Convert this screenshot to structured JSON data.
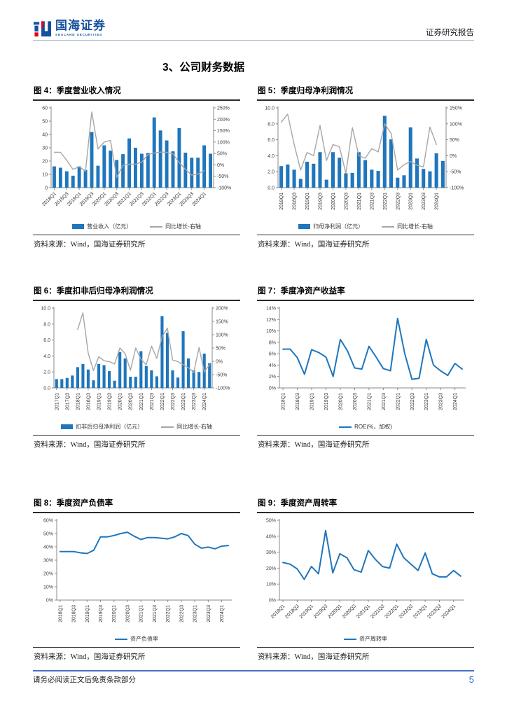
{
  "header": {
    "brand_cn": "国海证券",
    "brand_en": "SEALAND SECURITIES",
    "doc_type": "证券研究报告"
  },
  "section_title": "3、公司财务数据",
  "footer": {
    "disclaimer": "请务必阅读正文后免责条款部分",
    "page_number": "5"
  },
  "colors": {
    "bar_blue": "#1F76BC",
    "line_gray": "#A6A6A6",
    "line_blue": "#1F76BC",
    "brand_blue": "#15509E",
    "brand_red": "#E60012",
    "footer_line": "#4472C4",
    "page_number_blue": "#2F6BD8",
    "axis_line": "#8a8a8a",
    "tick_text": "#404040"
  },
  "chart_data": [
    {
      "id": "fig4",
      "title": "图 4：季度营业收入情况",
      "type": "bar+line",
      "source": "资料来源：Wind，国海证券研究所",
      "categories": [
        "2018Q1",
        "2018Q2",
        "2018Q3",
        "2018Q4",
        "2019Q1",
        "2019Q2",
        "2019Q3",
        "2019Q4",
        "2020Q1",
        "2020Q2",
        "2020Q3",
        "2020Q4",
        "2021Q1",
        "2021Q2",
        "2021Q3",
        "2021Q4",
        "2022Q1",
        "2022Q2",
        "2022Q3",
        "2022Q4",
        "2023Q1",
        "2023Q2",
        "2023Q3",
        "2023Q4",
        "2024Q1",
        "2024Q2"
      ],
      "x_label_every": 2,
      "x_label_rotate": 45,
      "bar_series": {
        "name": "营业收入（亿元）",
        "axis": "left",
        "values": [
          16,
          15,
          12.3,
          9,
          16,
          13.3,
          41.8,
          16.5,
          31.8,
          27.8,
          20.8,
          25.2,
          37,
          30,
          25.5,
          26,
          52.8,
          43,
          35.5,
          27.3,
          44.8,
          26.3,
          22.5,
          22.5,
          31.8,
          25.5
        ]
      },
      "line_series": {
        "name": "同比增长-右轴",
        "axis": "right",
        "values": [
          55,
          55,
          20,
          -20,
          -8,
          -28,
          232,
          70,
          100,
          107,
          -55,
          -2,
          3,
          3,
          12,
          45,
          52,
          56,
          55,
          48,
          10,
          -20,
          -45,
          -40,
          -25,
          null
        ]
      },
      "left_axis": {
        "min": 0,
        "max": 60,
        "step": 10,
        "format": "int"
      },
      "right_axis": {
        "min": -100,
        "max": 250,
        "step": 50,
        "format": "pct"
      }
    },
    {
      "id": "fig5",
      "title": "图 5：季度归母净利润情况",
      "type": "bar+line",
      "source": "资料来源：Wind，国海证券研究所",
      "categories": [
        "2018Q1",
        "2018Q2",
        "2018Q3",
        "2018Q4",
        "2019Q1",
        "2019Q2",
        "2019Q3",
        "2019Q4",
        "2020Q1",
        "2020Q2",
        "2020Q3",
        "2020Q4",
        "2021Q1",
        "2021Q2",
        "2021Q3",
        "2021Q4",
        "2022Q1",
        "2022Q2",
        "2022Q3",
        "2022Q4",
        "2023Q1",
        "2023Q2",
        "2023Q3",
        "2023Q4",
        "2024Q1",
        "2024Q2"
      ],
      "x_label_every": 2,
      "x_label_rotate": 90,
      "bar_series": {
        "name": "归母净利润（亿元）",
        "axis": "left",
        "values": [
          2.7,
          2.9,
          2.25,
          1.1,
          3.25,
          3.0,
          4.45,
          1.0,
          4.45,
          3.75,
          1.8,
          1.85,
          4.45,
          3.45,
          2.25,
          2.1,
          9.0,
          6.05,
          1.25,
          1.55,
          7.55,
          3.65,
          2.35,
          2.05,
          4.3,
          3.35
        ]
      },
      "line_series": {
        "name": "同比增长-右轴",
        "axis": "right",
        "values": [
          105,
          130,
          35,
          -45,
          10,
          0,
          95,
          -15,
          35,
          28,
          -55,
          88,
          0,
          -8,
          22,
          12,
          100,
          70,
          -45,
          -28,
          -18,
          -30,
          -35,
          90,
          35,
          null
        ]
      },
      "left_axis": {
        "min": 0,
        "max": 10,
        "step": 2,
        "format": "dec1"
      },
      "right_axis": {
        "min": -100,
        "max": 150,
        "step": 50,
        "format": "pct"
      }
    },
    {
      "id": "fig6",
      "title": "图 6：季度扣非后归母净利润情况",
      "type": "bar+line",
      "source": "资料来源：Wind，国海证券研究所",
      "categories": [
        "2017Q1",
        "2017Q2",
        "2017Q3",
        "2017Q4",
        "2018Q1",
        "2018Q2",
        "2018Q3",
        "2018Q4",
        "2019Q1",
        "2019Q2",
        "2019Q3",
        "2019Q4",
        "2020Q1",
        "2020Q2",
        "2020Q3",
        "2020Q4",
        "2021Q1",
        "2021Q2",
        "2021Q3",
        "2021Q4",
        "2022Q1",
        "2022Q2",
        "2022Q3",
        "2022Q4",
        "2023Q1",
        "2023Q2",
        "2023Q3",
        "2023Q4",
        "2024Q1",
        "2024Q2"
      ],
      "x_label_every": 2,
      "x_label_rotate": 90,
      "bar_series": {
        "name": "扣非后归母净利润（亿元）",
        "axis": "left",
        "values": [
          1.1,
          1.1,
          1.25,
          1.55,
          2.6,
          3.0,
          2.3,
          0.95,
          3.0,
          2.85,
          2.1,
          0.9,
          4.5,
          3.7,
          1.4,
          1.4,
          4.6,
          2.75,
          2.2,
          1.45,
          9.0,
          6.9,
          2.2,
          1.3,
          7.1,
          3.7,
          2.2,
          2.0,
          4.3,
          3.1
        ]
      },
      "line_series": {
        "name": "同比增长-右轴",
        "axis": "right",
        "values": [
          null,
          null,
          null,
          null,
          120,
          182,
          30,
          -35,
          17,
          2,
          -1,
          -10,
          50,
          29,
          -34,
          50,
          8,
          -13,
          57,
          11,
          92,
          125,
          5,
          -1,
          -13,
          -24,
          -43,
          52,
          -40,
          -13
        ]
      },
      "left_axis": {
        "min": 0,
        "max": 10,
        "step": 2,
        "format": "dec1"
      },
      "right_axis": {
        "min": -100,
        "max": 200,
        "step": 50,
        "format": "pct"
      }
    },
    {
      "id": "fig7",
      "title": "图 7：季度净资产收益率",
      "type": "line",
      "source": "资料来源：Wind，国海证券研究所",
      "categories": [
        "2018Q1",
        "2018Q2",
        "2018Q3",
        "2018Q4",
        "2019Q1",
        "2019Q2",
        "2019Q3",
        "2019Q4",
        "2020Q1",
        "2020Q2",
        "2020Q3",
        "2020Q4",
        "2021Q1",
        "2021Q2",
        "2021Q3",
        "2021Q4",
        "2022Q1",
        "2022Q2",
        "2022Q3",
        "2022Q4",
        "2023Q1",
        "2023Q2",
        "2023Q3",
        "2023Q4",
        "2024Q1",
        "2024Q2"
      ],
      "x_label_every": 2,
      "x_label_rotate": 90,
      "line_series": {
        "name": "ROE(%，加权)",
        "axis": "left",
        "values": [
          6.8,
          6.8,
          5.3,
          2.4,
          6.7,
          6.2,
          5.4,
          2.0,
          8.5,
          6.5,
          3.5,
          3.3,
          7.3,
          5.4,
          3.4,
          3.0,
          12.2,
          6.0,
          1.5,
          1.7,
          8.5,
          4.0,
          3.0,
          2.2,
          4.3,
          3.3
        ]
      },
      "left_axis": {
        "min": 0,
        "max": 14,
        "step": 2,
        "format": "pct"
      }
    },
    {
      "id": "fig8",
      "title": "图 8：季度资产负债率",
      "type": "line",
      "source": "资料来源：Wind，国海证券研究所",
      "categories": [
        "2018Q1",
        "2018Q2",
        "2018Q3",
        "2018Q4",
        "2019Q1",
        "2019Q2",
        "2019Q3",
        "2019Q4",
        "2020Q1",
        "2020Q2",
        "2020Q3",
        "2020Q4",
        "2021Q1",
        "2021Q2",
        "2021Q3",
        "2021Q4",
        "2022Q1",
        "2022Q2",
        "2022Q3",
        "2022Q4",
        "2023Q1",
        "2023Q2",
        "2023Q3",
        "2023Q4",
        "2024Q1",
        "2024Q2"
      ],
      "x_label_every": 2,
      "x_label_rotate": 90,
      "line_series": {
        "name": "资产负债率",
        "axis": "left",
        "values": [
          36.5,
          36.5,
          36.5,
          35.5,
          35.0,
          37.5,
          47.5,
          47.5,
          48.5,
          50.0,
          51.0,
          48.0,
          45.5,
          47.0,
          47.0,
          46.5,
          46.0,
          47.5,
          50.0,
          48.5,
          42.0,
          39.0,
          39.8,
          38.5,
          40.5,
          41.0
        ]
      },
      "left_axis": {
        "min": 0,
        "max": 60,
        "step": 10,
        "format": "pct"
      }
    },
    {
      "id": "fig9",
      "title": "图 9：季度资产周转率",
      "type": "line",
      "source": "资料来源：Wind，国海证券研究所",
      "categories": [
        "2018Q1",
        "2018Q2",
        "2018Q3",
        "2018Q4",
        "2019Q1",
        "2019Q2",
        "2019Q3",
        "2019Q4",
        "2020Q1",
        "2020Q2",
        "2020Q3",
        "2020Q4",
        "2021Q1",
        "2021Q2",
        "2021Q3",
        "2021Q4",
        "2022Q1",
        "2022Q2",
        "2022Q3",
        "2022Q4",
        "2023Q1",
        "2023Q2",
        "2023Q3",
        "2023Q4",
        "2024Q1",
        "2024Q2"
      ],
      "x_label_every": 2,
      "x_label_rotate": 45,
      "line_series": {
        "name": "资产周转率",
        "axis": "left",
        "values": [
          23.5,
          22.5,
          19.5,
          13,
          21,
          16.5,
          43.5,
          17,
          29,
          26.5,
          19,
          17.5,
          31,
          25.5,
          21,
          20,
          35,
          26.5,
          22.5,
          18.5,
          29.5,
          16.5,
          14.5,
          14.5,
          18.5,
          15
        ]
      },
      "left_axis": {
        "min": 0,
        "max": 50,
        "step": 10,
        "format": "pct"
      }
    }
  ]
}
